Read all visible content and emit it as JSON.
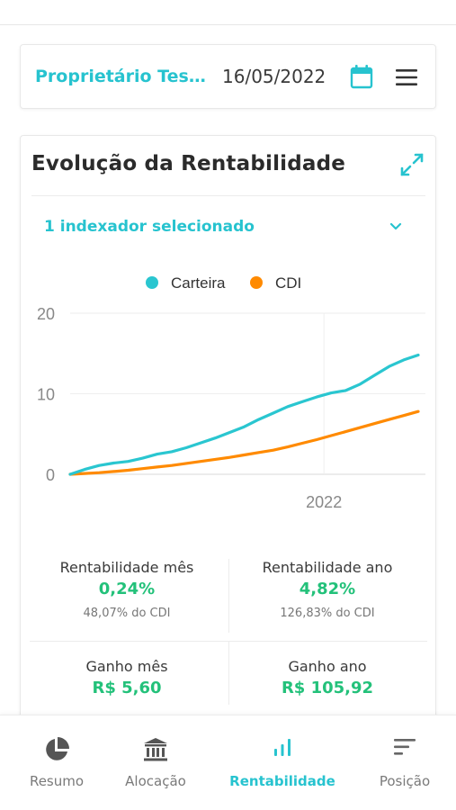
{
  "header": {
    "owner_name": "Proprietário Tes...",
    "date": "16/05/2022",
    "calendar_icon": "calendar-icon",
    "menu_icon": "hamburger-menu-icon"
  },
  "card": {
    "title": "Evolução da Rentabilidade",
    "expand_icon": "expand-icon",
    "indexer_label": "1 indexador selecionado"
  },
  "chart_data": {
    "type": "line",
    "legend": [
      "Carteira",
      "CDI"
    ],
    "legend_placement": "top-center",
    "ylim": [
      0,
      20
    ],
    "yticks": [
      "0",
      "10",
      "20"
    ],
    "xtick_label": "2022",
    "grid": true,
    "series": [
      {
        "name": "Carteira",
        "color": "#2ac6d0",
        "values": [
          0,
          0.6,
          1.1,
          1.4,
          1.6,
          2.0,
          2.5,
          2.8,
          3.3,
          3.9,
          4.5,
          5.2,
          5.9,
          6.8,
          7.6,
          8.4,
          9.0,
          9.6,
          10.1,
          10.4,
          11.2,
          12.3,
          13.4,
          14.2,
          14.8
        ]
      },
      {
        "name": "CDI",
        "color": "#ff8a00",
        "values": [
          0,
          0.1,
          0.2,
          0.35,
          0.5,
          0.7,
          0.9,
          1.1,
          1.35,
          1.6,
          1.85,
          2.1,
          2.4,
          2.7,
          3.0,
          3.4,
          3.85,
          4.3,
          4.8,
          5.3,
          5.8,
          6.3,
          6.8,
          7.3,
          7.8
        ]
      }
    ]
  },
  "stats": {
    "month": {
      "label": "Rentabilidade mês",
      "value": "0,24%",
      "sub": "48,07% do CDI"
    },
    "year": {
      "label": "Rentabilidade ano",
      "value": "4,82%",
      "sub": "126,83% do CDI"
    },
    "gain_month": {
      "label": "Ganho mês",
      "value": "R$ 5,60"
    },
    "gain_year": {
      "label": "Ganho ano",
      "value": "R$ 105,92"
    }
  },
  "nav": {
    "items": [
      {
        "label": "Resumo",
        "icon": "pie-chart-icon"
      },
      {
        "label": "Alocação",
        "icon": "bank-icon"
      },
      {
        "label": "Rentabilidade",
        "icon": "bar-chart-icon",
        "active": true
      },
      {
        "label": "Posição",
        "icon": "sort-lines-icon"
      }
    ]
  },
  "colors": {
    "accent": "#27c3cf",
    "positive": "#23c17a",
    "carteira": "#2ac6d0",
    "cdi": "#ff8a00"
  }
}
